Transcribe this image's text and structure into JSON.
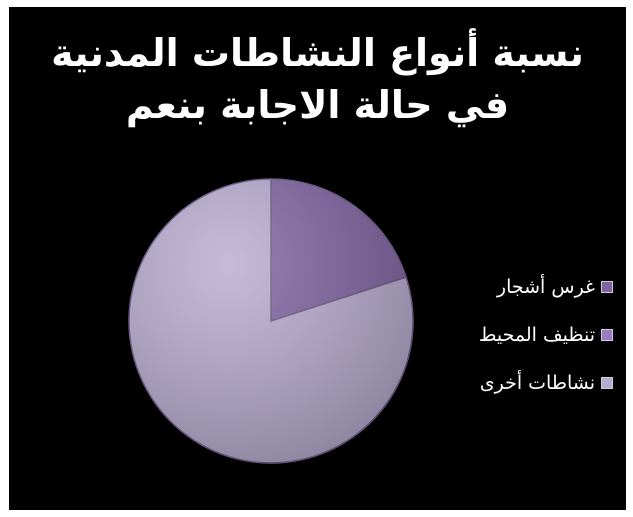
{
  "chart_data": {
    "type": "pie",
    "title_lines": [
      "نسبة أنواع النشاطات المدنية",
      "في حالة الاجابة بنعم"
    ],
    "categories": [
      "غرس أشجار",
      "تنظيف المحيط",
      "نشاطات أخرى"
    ],
    "values": [
      20,
      0,
      80
    ],
    "colors": [
      "#8064a2",
      "#9b7bc6",
      "#b8acd0"
    ],
    "legend_position": "right"
  }
}
